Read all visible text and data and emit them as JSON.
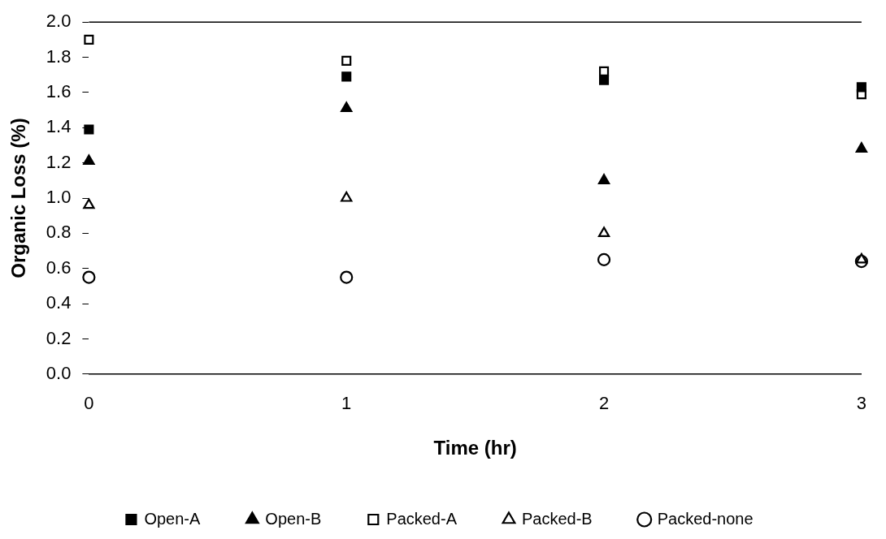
{
  "chart_data": {
    "type": "scatter",
    "xlabel": "Time (hr)",
    "ylabel": "Organic Loss (%)",
    "x": [
      0,
      1,
      2,
      3
    ],
    "xlim": [
      0,
      3
    ],
    "xticks": [
      0,
      1,
      2,
      3
    ],
    "ylim": [
      0,
      2.0
    ],
    "yticks": [
      {
        "value": 0,
        "label": "0.0"
      },
      {
        "value": 0.2,
        "label": "0.2"
      },
      {
        "value": 0.4,
        "label": "0.4"
      },
      {
        "value": 0.6,
        "label": "0.6"
      },
      {
        "value": 0.8,
        "label": "0.8"
      },
      {
        "value": 1.0,
        "label": "1.0"
      },
      {
        "value": 1.2,
        "label": "1.2"
      },
      {
        "value": 1.4,
        "label": "1.4"
      },
      {
        "value": 1.6,
        "label": "1.6"
      },
      {
        "value": 1.8,
        "label": "1.8"
      },
      {
        "value": 2.0,
        "label": "2.0"
      }
    ],
    "grid": false,
    "legend": "bottom",
    "series": [
      {
        "name": "Open-A",
        "color": "#000000",
        "marker": "square",
        "values": [
          1.39,
          1.69,
          1.67,
          1.63
        ]
      },
      {
        "name": "Open-B",
        "color": "#000000",
        "marker": "triangle",
        "values": [
          1.21,
          1.51,
          1.1,
          1.28
        ]
      },
      {
        "name": "Packed-A",
        "color": "#000000",
        "marker": "square",
        "values": [
          1.9,
          1.78,
          1.72,
          1.59
        ]
      },
      {
        "name": "Packed-B",
        "color": "#000000",
        "marker": "triangle",
        "values": [
          0.96,
          1.0,
          0.8,
          0.65
        ]
      },
      {
        "name": "Packed-none",
        "color": "#000000",
        "marker": "circle",
        "values": [
          0.55,
          0.55,
          0.65,
          0.64
        ]
      }
    ]
  }
}
